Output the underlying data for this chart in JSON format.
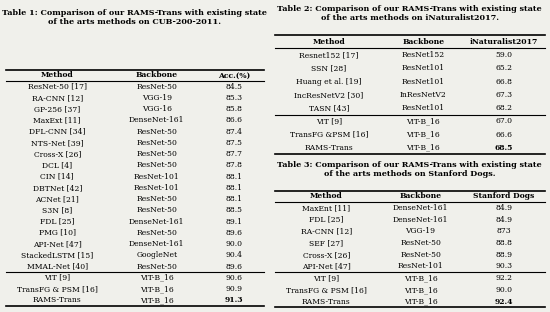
{
  "table1": {
    "title": "Table 1: Comparison of our RAMS-Trans with existing state\nof the arts methods on CUB-200-2011.",
    "headers": [
      "Method",
      "Backbone",
      "Acc.(%)"
    ],
    "rows": [
      [
        "ResNet-50 [17]",
        "ResNet-50",
        "84.5"
      ],
      [
        "RA-CNN [12]",
        "VGG-19",
        "85.3"
      ],
      [
        "GP-256 [37]",
        "VGG-16",
        "85.8"
      ],
      [
        "MaxExt [11]",
        "DenseNet-161",
        "86.6"
      ],
      [
        "DFL-CNN [34]",
        "ResNet-50",
        "87.4"
      ],
      [
        "NTS-Net [39]",
        "ResNet-50",
        "87.5"
      ],
      [
        "Cross-X [26]",
        "ResNet-50",
        "87.7"
      ],
      [
        "DCL [4]",
        "ResNet-50",
        "87.8"
      ],
      [
        "CIN [14]",
        "ResNet-101",
        "88.1"
      ],
      [
        "DBTNet [42]",
        "ResNet-101",
        "88.1"
      ],
      [
        "ACNet [21]",
        "ResNet-50",
        "88.1"
      ],
      [
        "S3N [8]",
        "ResNet-50",
        "88.5"
      ],
      [
        "FDL [25]",
        "DenseNet-161",
        "89.1"
      ],
      [
        "PMG [10]",
        "ResNet-50",
        "89.6"
      ],
      [
        "API-Net [47]",
        "DenseNet-161",
        "90.0"
      ],
      [
        "StackedLSTM [15]",
        "GoogleNet",
        "90.4"
      ],
      [
        "MMAL-Net [40]",
        "ResNet-50",
        "89.6"
      ]
    ],
    "rows_sep": [
      [
        "ViT [9]",
        "ViT-B_16",
        "90.6"
      ],
      [
        "TransFG & PSM [16]",
        "ViT-B_16",
        "90.9"
      ],
      [
        "RAMS-Trans",
        "ViT-B_16",
        "91.3"
      ]
    ]
  },
  "table2": {
    "title": "Table 2: Comparison of our RAMS-Trans with existing state\nof the arts methods on iNaturalist2017.",
    "headers": [
      "Method",
      "Backbone",
      "iNaturalist2017"
    ],
    "rows": [
      [
        "Resnet152 [17]",
        "ResNet152",
        "59.0"
      ],
      [
        "SSN [28]",
        "ResNet101",
        "65.2"
      ],
      [
        "Huang et al. [19]",
        "ResNet101",
        "66.8"
      ],
      [
        "IncResNetV2 [30]",
        "InResNetV2",
        "67.3"
      ],
      [
        "TASN [43]",
        "ResNet101",
        "68.2"
      ]
    ],
    "rows_sep": [
      [
        "ViT [9]",
        "ViT-B_16",
        "67.0"
      ],
      [
        "TransFG &PSM [16]",
        "ViT-B_16",
        "66.6"
      ],
      [
        "RAMS-Trans",
        "ViT-B_16",
        "68.5"
      ]
    ]
  },
  "table3": {
    "title": "Table 3: Comparison of our RAMS-Trans with existing state\nof the arts methods on Stanford Dogs.",
    "headers": [
      "Method",
      "Backbone",
      "Stanford Dogs"
    ],
    "rows": [
      [
        "MaxEnt [11]",
        "DenseNet-161",
        "84.9"
      ],
      [
        "FDL [25]",
        "DenseNet-161",
        "84.9"
      ],
      [
        "RA-CNN [12]",
        "VGG-19",
        "873"
      ],
      [
        "SEF [27]",
        "ResNet-50",
        "88.8"
      ],
      [
        "Cross-X [26]",
        "ResNet-50",
        "88.9"
      ],
      [
        "API-Net [47]",
        "ResNet-101",
        "90.3"
      ]
    ],
    "rows_sep": [
      [
        "ViT [9]",
        "ViT-B_16",
        "92.2"
      ],
      [
        "TransFG & PSM [16]",
        "ViT-B_16",
        "90.0"
      ],
      [
        "RAMS-Trans",
        "ViT-B_16",
        "92.4"
      ]
    ]
  },
  "bg_color": "#f0f0eb",
  "font_size": 5.5,
  "title_font_size": 5.8
}
